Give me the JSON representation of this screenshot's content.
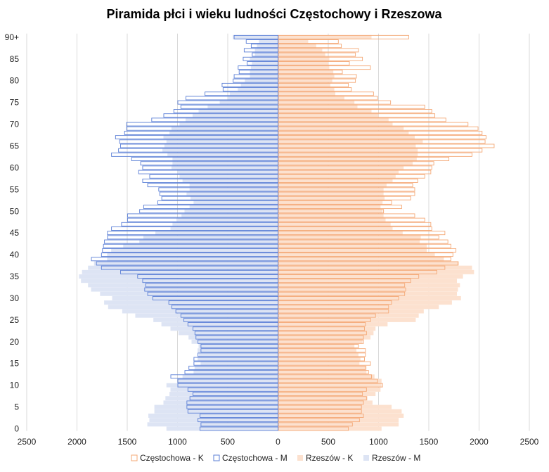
{
  "chart_data": {
    "type": "bar",
    "title": "Piramida płci i wieku ludności Częstochowy i Rzeszowa",
    "orientation": "horizontal-pyramid",
    "xlim": [
      -2500,
      2500
    ],
    "x_ticks": [
      -2500,
      -2000,
      -1500,
      -1000,
      -500,
      0,
      500,
      1000,
      1500,
      2000,
      2500
    ],
    "x_tick_labels": [
      "2500",
      "2000",
      "1500",
      "1000",
      "500",
      "0",
      "500",
      "1000",
      "1500",
      "2000",
      "2500"
    ],
    "y_tick_labels": [
      {
        "age": 0,
        "label": "0"
      },
      {
        "age": 5,
        "label": "5"
      },
      {
        "age": 10,
        "label": "10"
      },
      {
        "age": 15,
        "label": "15"
      },
      {
        "age": 20,
        "label": "20"
      },
      {
        "age": 25,
        "label": "25"
      },
      {
        "age": 30,
        "label": "30"
      },
      {
        "age": 35,
        "label": "35"
      },
      {
        "age": 40,
        "label": "40"
      },
      {
        "age": 45,
        "label": "45"
      },
      {
        "age": 50,
        "label": "50"
      },
      {
        "age": 55,
        "label": "55"
      },
      {
        "age": 60,
        "label": "60"
      },
      {
        "age": 65,
        "label": "65"
      },
      {
        "age": 70,
        "label": "70"
      },
      {
        "age": 75,
        "label": "75"
      },
      {
        "age": 80,
        "label": "80"
      },
      {
        "age": 85,
        "label": "85"
      },
      {
        "age": 90,
        "label": "90+"
      }
    ],
    "grid": "vertical",
    "legend_position": "bottom",
    "ages": [
      0,
      1,
      2,
      3,
      4,
      5,
      6,
      7,
      8,
      9,
      10,
      11,
      12,
      13,
      14,
      15,
      16,
      17,
      18,
      19,
      20,
      21,
      22,
      23,
      24,
      25,
      26,
      27,
      28,
      29,
      30,
      31,
      32,
      33,
      34,
      35,
      36,
      37,
      38,
      39,
      40,
      41,
      42,
      43,
      44,
      45,
      46,
      47,
      48,
      49,
      50,
      51,
      52,
      53,
      54,
      55,
      56,
      57,
      58,
      59,
      60,
      61,
      62,
      63,
      64,
      65,
      66,
      67,
      68,
      69,
      70,
      71,
      72,
      73,
      74,
      75,
      76,
      77,
      78,
      79,
      80,
      81,
      82,
      83,
      84,
      85,
      86,
      87,
      88,
      89,
      90
    ],
    "series": [
      {
        "name": "Częstochowa - K",
        "side": "right",
        "style": "outline",
        "color": "#f4a876",
        "values": [
          700,
          740,
          810,
          850,
          830,
          830,
          850,
          880,
          840,
          880,
          1040,
          990,
          930,
          900,
          870,
          920,
          860,
          870,
          870,
          800,
          850,
          850,
          880,
          860,
          870,
          920,
          970,
          1100,
          1100,
          1130,
          1200,
          1260,
          1270,
          1260,
          1320,
          1400,
          1580,
          1660,
          1790,
          1720,
          1740,
          1770,
          1720,
          1690,
          1600,
          1660,
          1530,
          1520,
          1460,
          1360,
          1050,
          1230,
          1130,
          1320,
          1360,
          1360,
          1340,
          1390,
          1460,
          1520,
          1530,
          1550,
          1700,
          1930,
          2030,
          2150,
          2060,
          2070,
          2030,
          1990,
          1890,
          1670,
          1560,
          1530,
          1460,
          1120,
          990,
          950,
          730,
          700,
          770,
          780,
          640,
          920,
          710,
          840,
          770,
          800,
          630,
          600,
          1300
        ]
      },
      {
        "name": "Częstochowa - M",
        "side": "left",
        "style": "outline",
        "color": "#5b7fd6",
        "values": [
          780,
          770,
          800,
          780,
          900,
          910,
          910,
          880,
          850,
          900,
          1000,
          1000,
          1070,
          930,
          890,
          840,
          840,
          800,
          770,
          770,
          800,
          820,
          830,
          850,
          900,
          940,
          970,
          1020,
          1060,
          1090,
          1250,
          1300,
          1330,
          1320,
          1350,
          1400,
          1570,
          1760,
          1810,
          1860,
          1760,
          1750,
          1740,
          1730,
          1700,
          1700,
          1660,
          1560,
          1500,
          1500,
          1380,
          1340,
          1200,
          1160,
          1180,
          1190,
          1300,
          1350,
          1280,
          1390,
          1350,
          1370,
          1460,
          1660,
          1590,
          1570,
          1580,
          1620,
          1530,
          1510,
          1510,
          1260,
          1140,
          1040,
          970,
          1000,
          920,
          730,
          550,
          560,
          450,
          440,
          390,
          400,
          310,
          350,
          260,
          340,
          270,
          320,
          440
        ]
      },
      {
        "name": "Rzeszów - K",
        "side": "right",
        "style": "fill",
        "color": "#fce1cf",
        "values": [
          1030,
          1200,
          1200,
          1250,
          1230,
          1130,
          940,
          890,
          970,
          1020,
          1030,
          1030,
          960,
          880,
          880,
          810,
          820,
          800,
          780,
          760,
          840,
          920,
          950,
          970,
          1090,
          1370,
          1400,
          1450,
          1600,
          1730,
          1820,
          1780,
          1790,
          1810,
          1780,
          1840,
          1950,
          1930,
          1800,
          1650,
          1560,
          1480,
          1480,
          1410,
          1420,
          1240,
          1140,
          1120,
          1070,
          1050,
          1040,
          1020,
          1040,
          1060,
          1050,
          1050,
          1080,
          1140,
          1170,
          1200,
          1250,
          1340,
          1380,
          1390,
          1390,
          1370,
          1440,
          1360,
          1300,
          1250,
          1140,
          1100,
          1000,
          930,
          790,
          760,
          660,
          570,
          560,
          520,
          540,
          560,
          550,
          510,
          500,
          510,
          470,
          440,
          380,
          300,
          930
        ]
      },
      {
        "name": "Rzeszów - M",
        "side": "left",
        "style": "fill",
        "color": "#dde4f4",
        "values": [
          1110,
          1300,
          1280,
          1290,
          1230,
          1230,
          1140,
          1120,
          1080,
          1070,
          1110,
          1000,
          950,
          840,
          830,
          770,
          800,
          790,
          800,
          790,
          860,
          890,
          990,
          1070,
          1160,
          1240,
          1420,
          1550,
          1690,
          1730,
          1650,
          1770,
          1860,
          1890,
          1960,
          1980,
          1950,
          1890,
          1830,
          1700,
          1700,
          1660,
          1540,
          1380,
          1340,
          1220,
          1070,
          1050,
          1010,
          960,
          930,
          880,
          840,
          870,
          910,
          880,
          880,
          950,
          980,
          1000,
          1060,
          1050,
          1050,
          1100,
          1150,
          1130,
          1110,
          1140,
          1080,
          1060,
          980,
          920,
          850,
          790,
          700,
          580,
          500,
          480,
          400,
          370,
          330,
          280,
          280,
          270,
          260,
          280,
          230,
          230,
          210,
          190,
          450
        ]
      }
    ]
  }
}
